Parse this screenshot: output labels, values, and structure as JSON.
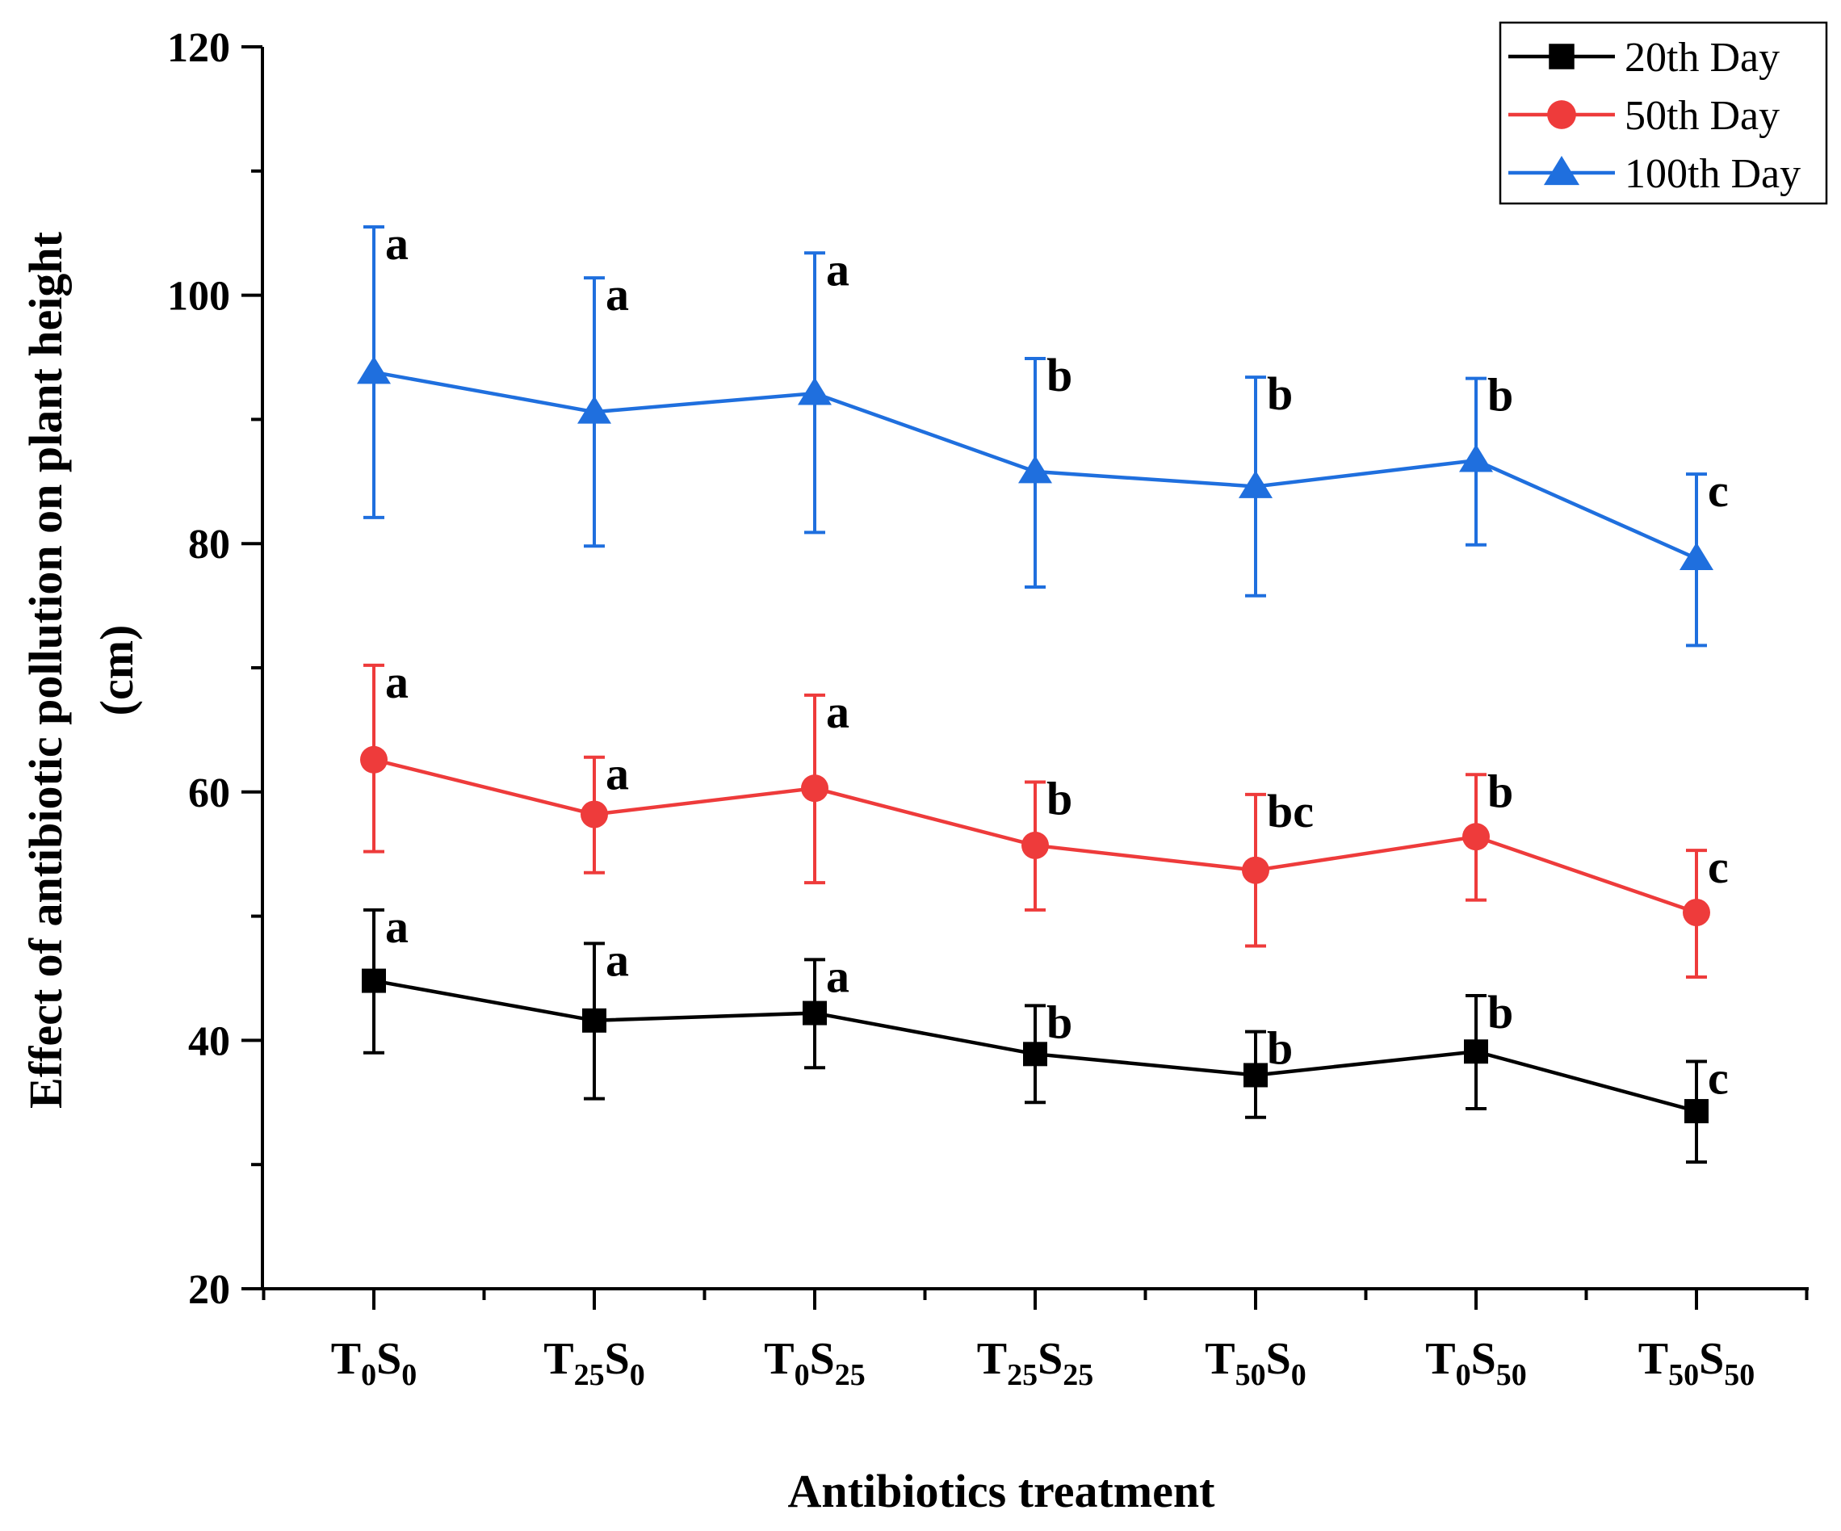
{
  "chart_data": {
    "type": "line",
    "title": "",
    "xlabel": "Antibiotics treatment",
    "ylabel_line1": "Effect of antibiotic pollution on plant height",
    "ylabel_line2": "(cm)",
    "ylim": [
      20,
      120
    ],
    "yticks": [
      20,
      40,
      60,
      80,
      100,
      120
    ],
    "categories": [
      {
        "base1": "T",
        "sub1": "0",
        "base2": "S",
        "sub2": "0"
      },
      {
        "base1": "T",
        "sub1": "25",
        "base2": "S",
        "sub2": "0"
      },
      {
        "base1": "T",
        "sub1": "0",
        "base2": "S",
        "sub2": "25"
      },
      {
        "base1": "T",
        "sub1": "25",
        "base2": "S",
        "sub2": "25"
      },
      {
        "base1": "T",
        "sub1": "50",
        "base2": "S",
        "sub2": "0"
      },
      {
        "base1": "T",
        "sub1": "0",
        "base2": "S",
        "sub2": "50"
      },
      {
        "base1": "T",
        "sub1": "50",
        "base2": "S",
        "sub2": "50"
      }
    ],
    "legend_position": "top-right",
    "series": [
      {
        "name": "20th Day",
        "color": "#000000",
        "marker": "square",
        "values": [
          44.8,
          41.6,
          42.2,
          38.9,
          37.2,
          39.1,
          34.3
        ],
        "err_upper": [
          50.5,
          47.8,
          46.5,
          42.8,
          40.7,
          43.6,
          38.3
        ],
        "err_lower": [
          39.0,
          35.3,
          37.8,
          35.0,
          33.8,
          34.5,
          30.2
        ],
        "letters": [
          "a",
          "a",
          "a",
          "b",
          "b",
          "b",
          "c"
        ]
      },
      {
        "name": "50th Day",
        "color": "#EE3B3B",
        "marker": "circle",
        "values": [
          62.6,
          58.2,
          60.3,
          55.7,
          53.7,
          56.4,
          50.3
        ],
        "err_upper": [
          70.2,
          62.8,
          67.8,
          60.8,
          59.8,
          61.4,
          55.3
        ],
        "err_lower": [
          55.2,
          53.5,
          52.7,
          50.5,
          47.6,
          51.3,
          45.1
        ],
        "letters": [
          "a",
          "a",
          "a",
          "b",
          "bc",
          "b",
          "c"
        ]
      },
      {
        "name": "100th Day",
        "color": "#1F6FDE",
        "marker": "triangle",
        "values": [
          93.8,
          90.6,
          92.1,
          85.8,
          84.6,
          86.7,
          78.8
        ],
        "err_upper": [
          105.5,
          101.4,
          103.4,
          94.9,
          93.4,
          93.3,
          85.6
        ],
        "err_lower": [
          82.1,
          79.8,
          80.9,
          76.5,
          75.8,
          79.9,
          71.8
        ],
        "letters": [
          "a",
          "a",
          "a",
          "b",
          "b",
          "b",
          "c"
        ]
      }
    ]
  }
}
